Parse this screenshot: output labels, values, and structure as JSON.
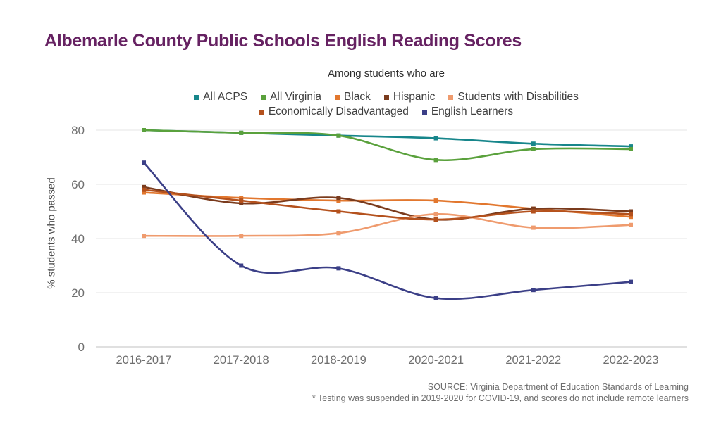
{
  "title": "Albemarle County Public Schools English Reading Scores",
  "subtitle": "Among students who are",
  "footer": {
    "source": "SOURCE: Virginia Department of Education Standards of Learning",
    "note": "* Testing was suspended in 2019-2020 for COVID-19, and scores do not include remote learners"
  },
  "colors": {
    "title": "#662262",
    "grid": "#e4e4e4",
    "zero_line": "#c2c2c2",
    "tick_text": "#6f6f6f",
    "legend_text": "#3f3f3f"
  },
  "chart_data": {
    "type": "line",
    "title": "Albemarle County Public Schools English Reading Scores",
    "subtitle": "Among students who are",
    "xlabel": "",
    "ylabel": "% students who passed",
    "categories": [
      "2016-2017",
      "2017-2018",
      "2018-2019",
      "2020-2021",
      "2021-2022",
      "2022-2023"
    ],
    "yticks": [
      0,
      20,
      40,
      60,
      80
    ],
    "ylim": [
      0,
      84
    ],
    "grid": "horizontal",
    "legend_position": "top-center",
    "legend_rows": [
      [
        0,
        1,
        2,
        3,
        4
      ],
      [
        5,
        6
      ]
    ],
    "marker": "square",
    "series": [
      {
        "name": "All ACPS",
        "color": "#17868b",
        "values": [
          80,
          79,
          78,
          77,
          75,
          74
        ]
      },
      {
        "name": "All Virginia",
        "color": "#5aa13c",
        "values": [
          80,
          79,
          78,
          69,
          73,
          73
        ]
      },
      {
        "name": "Black",
        "color": "#e2772e",
        "values": [
          57,
          55,
          54,
          54,
          51,
          48
        ]
      },
      {
        "name": "Hispanic",
        "color": "#7a3b1d",
        "values": [
          59,
          53,
          55,
          47,
          51,
          50
        ]
      },
      {
        "name": "Students with Disabilities",
        "color": "#ef9b6e",
        "values": [
          41,
          41,
          42,
          49,
          44,
          45
        ]
      },
      {
        "name": "Economically Disadvantaged",
        "color": "#b4511d",
        "values": [
          58,
          54,
          50,
          47,
          50,
          49
        ]
      },
      {
        "name": "English Learners",
        "color": "#3b3f87",
        "values": [
          68,
          30,
          29,
          18,
          21,
          24
        ]
      }
    ]
  }
}
